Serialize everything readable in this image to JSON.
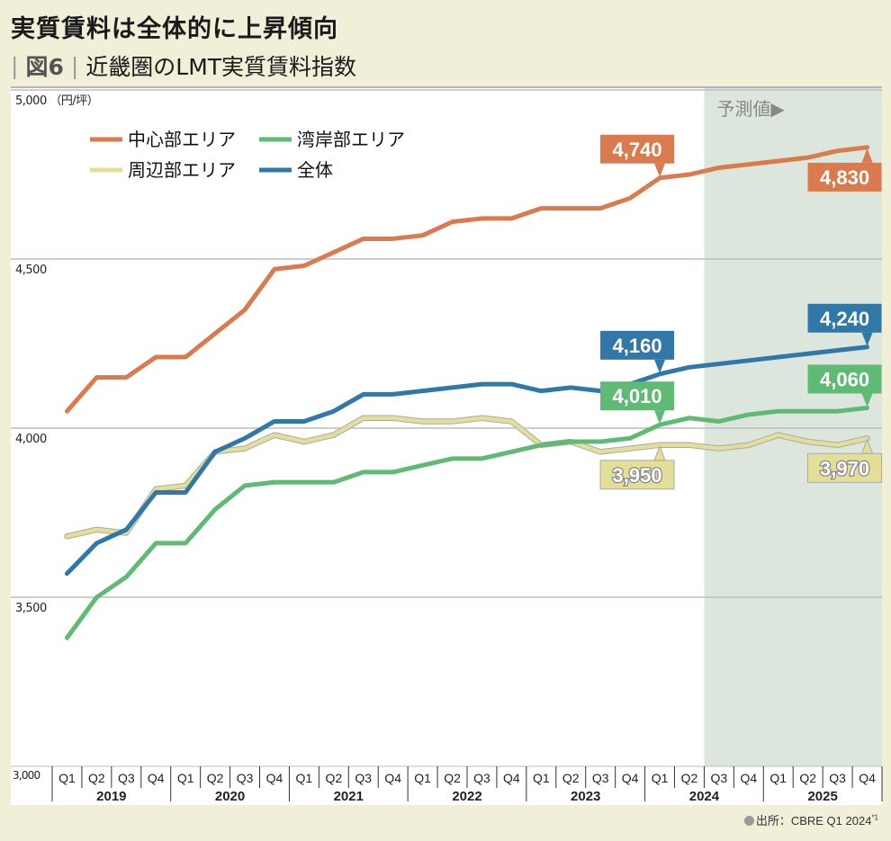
{
  "header": {
    "title": "実質賃料は全体的に上昇傾向",
    "figure_number": "図6",
    "subtitle": "近畿圏のLMT実質賃料指数"
  },
  "source": {
    "text": "出所：CBRE Q1 2024",
    "note_mark": "*1"
  },
  "chart_data": {
    "type": "line",
    "title": "近畿圏のLMT実質賃料指数",
    "ylabel": "",
    "yunit_label": "（円/坪）",
    "ylim": [
      3000,
      5000
    ],
    "yticks": [
      3000,
      3500,
      4000,
      4500,
      5000
    ],
    "ytick_labels": [
      "3,000",
      "3,500",
      "4,000",
      "4,500",
      "5,000"
    ],
    "grid": true,
    "legend": "top-left",
    "years": [
      "2019",
      "2020",
      "2021",
      "2022",
      "2023",
      "2024",
      "2025"
    ],
    "quarters": [
      "Q1",
      "Q2",
      "Q3",
      "Q4"
    ],
    "forecast": {
      "label": "予測値▶",
      "start": "2024 Q3",
      "color": "#dce6dd"
    },
    "series": [
      {
        "name": "中心部エリア",
        "color": "#d97b4e",
        "values": [
          4050,
          4150,
          4150,
          4210,
          4210,
          4280,
          4350,
          4470,
          4480,
          4520,
          4560,
          4560,
          4570,
          4610,
          4620,
          4620,
          4650,
          4650,
          4650,
          4680,
          4740,
          4750,
          4770,
          4780,
          4790,
          4800,
          4820,
          4830
        ]
      },
      {
        "name": "湾岸部エリア",
        "color": "#5fba74",
        "values": [
          3380,
          3500,
          3560,
          3660,
          3660,
          3760,
          3830,
          3840,
          3840,
          3840,
          3870,
          3870,
          3890,
          3910,
          3910,
          3930,
          3950,
          3960,
          3960,
          3970,
          4010,
          4030,
          4020,
          4040,
          4050,
          4050,
          4050,
          4060
        ]
      },
      {
        "name": "周辺部エリア",
        "color": "#e3de98",
        "values": [
          3680,
          3700,
          3690,
          3820,
          3830,
          3930,
          3940,
          3980,
          3960,
          3980,
          4030,
          4030,
          4020,
          4020,
          4030,
          4020,
          3950,
          3960,
          3930,
          3940,
          3950,
          3950,
          3940,
          3950,
          3980,
          3960,
          3950,
          3970
        ]
      },
      {
        "name": "全体",
        "color": "#2f78a7",
        "values": [
          3570,
          3660,
          3700,
          3810,
          3810,
          3930,
          3970,
          4020,
          4020,
          4050,
          4100,
          4100,
          4110,
          4120,
          4130,
          4130,
          4110,
          4120,
          4110,
          4130,
          4160,
          4180,
          4190,
          4200,
          4210,
          4220,
          4230,
          4240
        ]
      }
    ],
    "annotations": [
      {
        "series": 0,
        "index": 20,
        "label": "4,740",
        "position": "above"
      },
      {
        "series": 0,
        "index": 27,
        "label": "4,830",
        "position": "below"
      },
      {
        "series": 3,
        "index": 20,
        "label": "4,160",
        "position": "above"
      },
      {
        "series": 3,
        "index": 27,
        "label": "4,240",
        "position": "above"
      },
      {
        "series": 1,
        "index": 20,
        "label": "4,010",
        "position": "above"
      },
      {
        "series": 1,
        "index": 27,
        "label": "4,060",
        "position": "above"
      },
      {
        "series": 2,
        "index": 20,
        "label": "3,950",
        "position": "below"
      },
      {
        "series": 2,
        "index": 27,
        "label": "3,970",
        "position": "below"
      }
    ]
  }
}
